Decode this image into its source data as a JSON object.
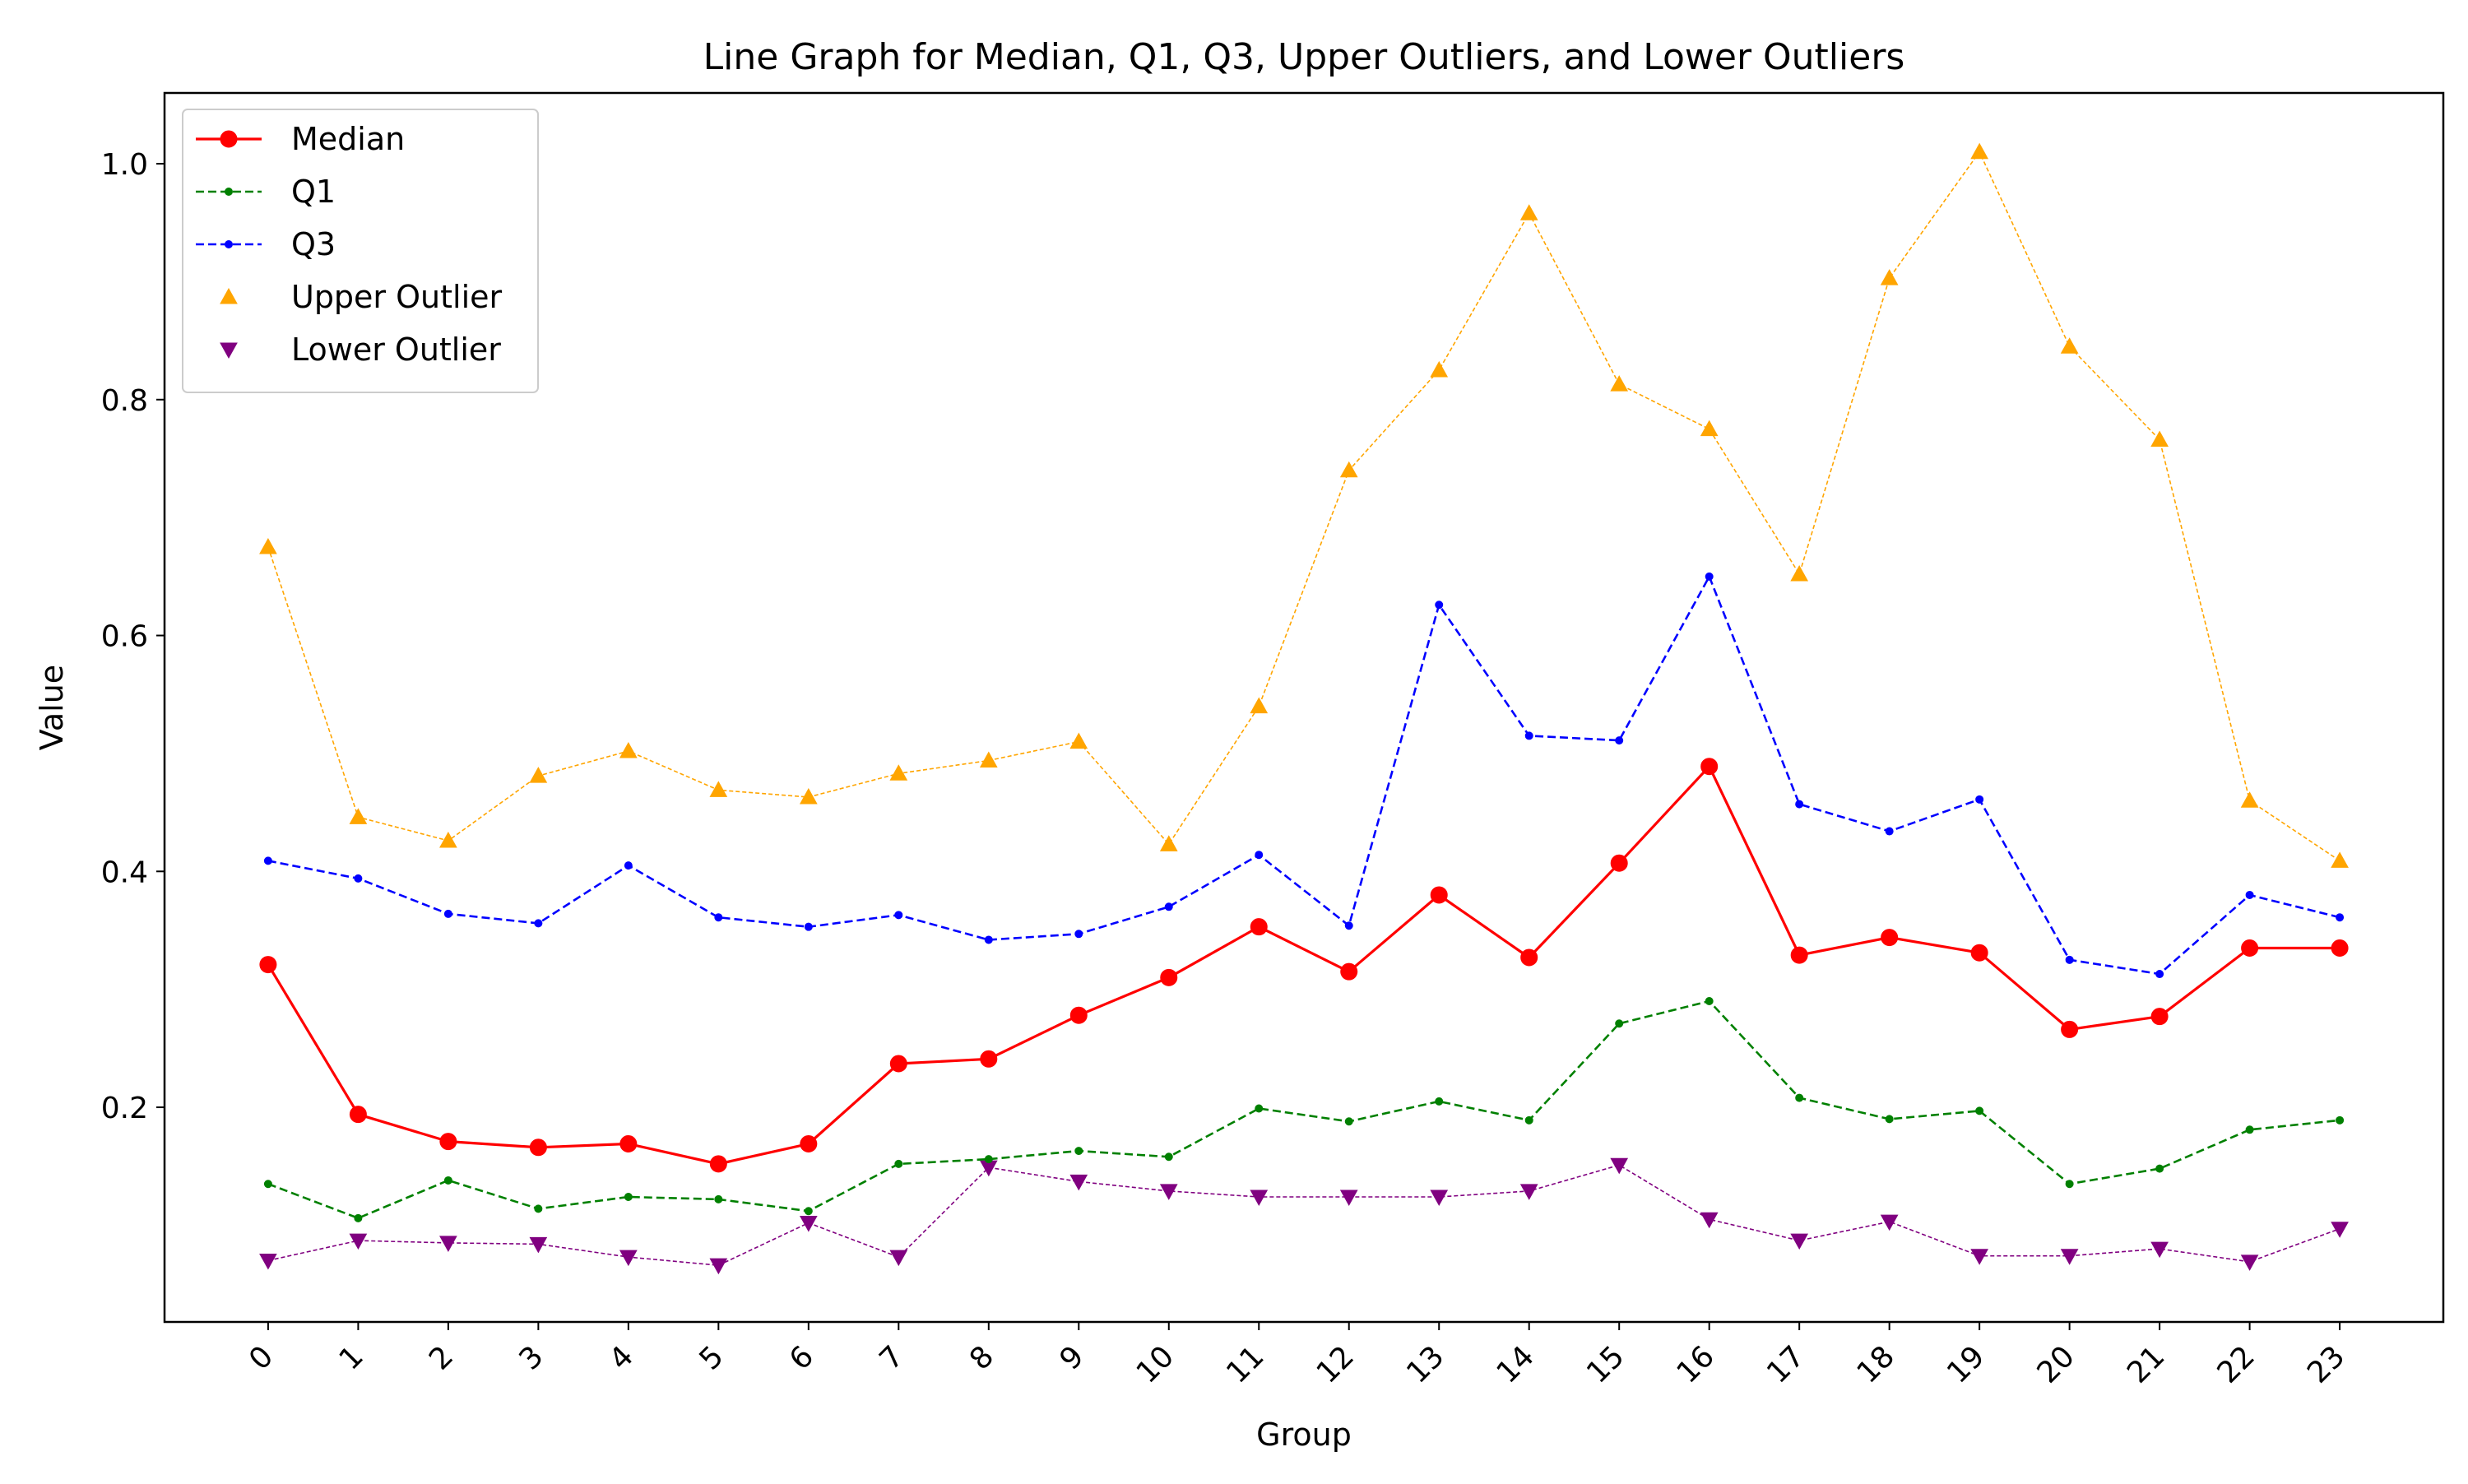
{
  "chart_data": {
    "type": "line",
    "title": "Line Graph for Median, Q1, Q3, Upper Outliers, and Lower Outliers",
    "xlabel": "Group",
    "ylabel": "Value",
    "x": [
      0,
      1,
      2,
      3,
      4,
      5,
      6,
      7,
      8,
      9,
      10,
      11,
      12,
      13,
      14,
      15,
      16,
      17,
      18,
      19,
      20,
      21,
      22,
      23
    ],
    "x_tick_labels": [
      "0",
      "1",
      "2",
      "3",
      "4",
      "5",
      "6",
      "7",
      "8",
      "9",
      "10",
      "11",
      "12",
      "13",
      "14",
      "15",
      "16",
      "17",
      "18",
      "19",
      "20",
      "21",
      "22",
      "23"
    ],
    "xlim": [
      -1.15,
      24.15
    ],
    "ylim": [
      0.018,
      1.06
    ],
    "y_ticks": [
      0.2,
      0.4,
      0.6,
      0.8,
      1.0
    ],
    "y_tick_labels": [
      "0.2",
      "0.4",
      "0.6",
      "0.8",
      "1.0"
    ],
    "grid": false,
    "legend_position": "top-left",
    "series": [
      {
        "name": "Median",
        "color": "#ff0000",
        "marker": "circle",
        "line_style": "solid",
        "values": [
          0.321,
          0.194,
          0.171,
          0.166,
          0.169,
          0.152,
          0.169,
          0.237,
          0.241,
          0.278,
          0.31,
          0.353,
          0.315,
          0.38,
          0.327,
          0.407,
          0.489,
          0.329,
          0.344,
          0.331,
          0.266,
          0.277,
          0.335,
          0.335
        ]
      },
      {
        "name": "Q1",
        "color": "#008000",
        "marker": "dot",
        "line_style": "dashed",
        "values": [
          0.135,
          0.106,
          0.138,
          0.114,
          0.124,
          0.122,
          0.112,
          0.152,
          0.156,
          0.163,
          0.158,
          0.199,
          0.188,
          0.205,
          0.189,
          0.271,
          0.29,
          0.208,
          0.19,
          0.197,
          0.135,
          0.148,
          0.181,
          0.189
        ]
      },
      {
        "name": "Q3",
        "color": "#0000ff",
        "marker": "dot",
        "line_style": "dashed",
        "values": [
          0.409,
          0.394,
          0.364,
          0.356,
          0.405,
          0.361,
          0.353,
          0.363,
          0.342,
          0.347,
          0.37,
          0.414,
          0.354,
          0.626,
          0.515,
          0.511,
          0.65,
          0.457,
          0.434,
          0.461,
          0.325,
          0.313,
          0.38,
          0.361
        ]
      },
      {
        "name": "Upper Outlier",
        "color": "#ffa500",
        "marker": "triangle-up",
        "line_style": "dashed-thin",
        "values": [
          0.675,
          0.446,
          0.426,
          0.481,
          0.502,
          0.469,
          0.463,
          0.483,
          0.494,
          0.51,
          0.423,
          0.54,
          0.74,
          0.825,
          0.958,
          0.813,
          0.775,
          0.652,
          0.903,
          1.01,
          0.845,
          0.766,
          0.46,
          0.409
        ]
      },
      {
        "name": "Lower Outlier",
        "color": "#800080",
        "marker": "triangle-down",
        "line_style": "dashed-thin",
        "values": [
          0.07,
          0.087,
          0.085,
          0.084,
          0.073,
          0.066,
          0.102,
          0.073,
          0.149,
          0.137,
          0.129,
          0.124,
          0.124,
          0.124,
          0.129,
          0.151,
          0.105,
          0.087,
          0.103,
          0.074,
          0.074,
          0.08,
          0.069,
          0.097
        ]
      }
    ]
  }
}
